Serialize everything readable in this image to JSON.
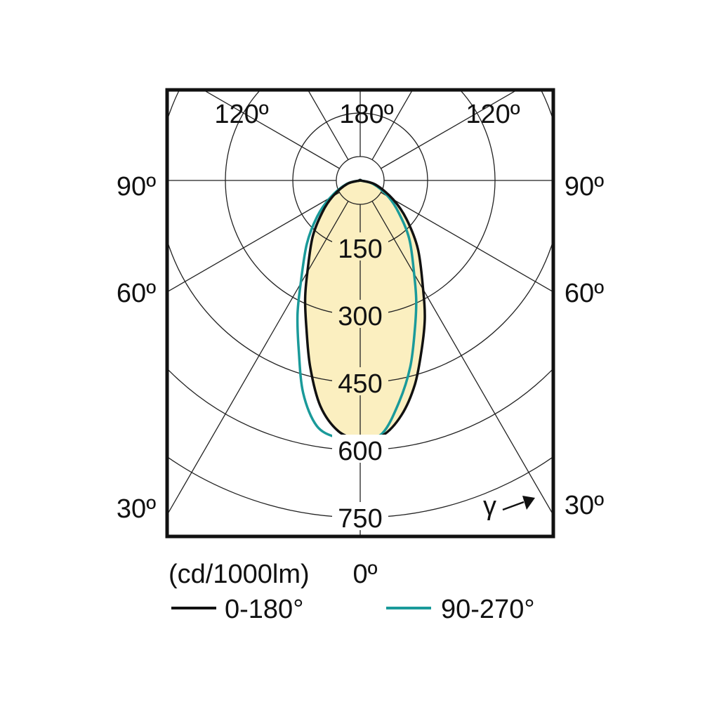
{
  "chart_data": {
    "type": "polar",
    "unit_label": "(cd/1000lm)",
    "radial_ticks": [
      "150",
      "300",
      "450",
      "600",
      "750"
    ],
    "radial_values": [
      150,
      300,
      450,
      600,
      750
    ],
    "angle_labels": {
      "top_left": "120º",
      "top_center": "180º",
      "top_right": "120º",
      "left_90": "90º",
      "right_90": "90º",
      "left_60": "60º",
      "right_60": "60º",
      "left_30": "30º",
      "right_30": "30º",
      "bottom": "0º"
    },
    "gamma_symbol": "γ",
    "series": [
      {
        "name": "0-180°",
        "color": "#111111",
        "gamma_deg": [
          0,
          5,
          10,
          15,
          20,
          25,
          30,
          40,
          50,
          60,
          75,
          90
        ],
        "left_cd": [
          580,
          560,
          510,
          430,
          350,
          290,
          235,
          165,
          110,
          70,
          30,
          0
        ],
        "right_cd": [
          580,
          570,
          530,
          470,
          400,
          340,
          280,
          200,
          135,
          85,
          35,
          0
        ]
      },
      {
        "name": "90-270°",
        "color": "#1a9a9a",
        "gamma_deg": [
          0,
          5,
          10,
          15,
          20,
          25,
          30,
          40,
          50,
          60,
          75,
          90
        ],
        "left_cd": [
          580,
          575,
          555,
          490,
          400,
          330,
          265,
          185,
          125,
          78,
          32,
          0
        ],
        "right_cd": [
          580,
          565,
          500,
          430,
          355,
          295,
          240,
          170,
          112,
          72,
          30,
          0
        ]
      }
    ],
    "fill_color": "#fbefc0",
    "grid": true
  }
}
